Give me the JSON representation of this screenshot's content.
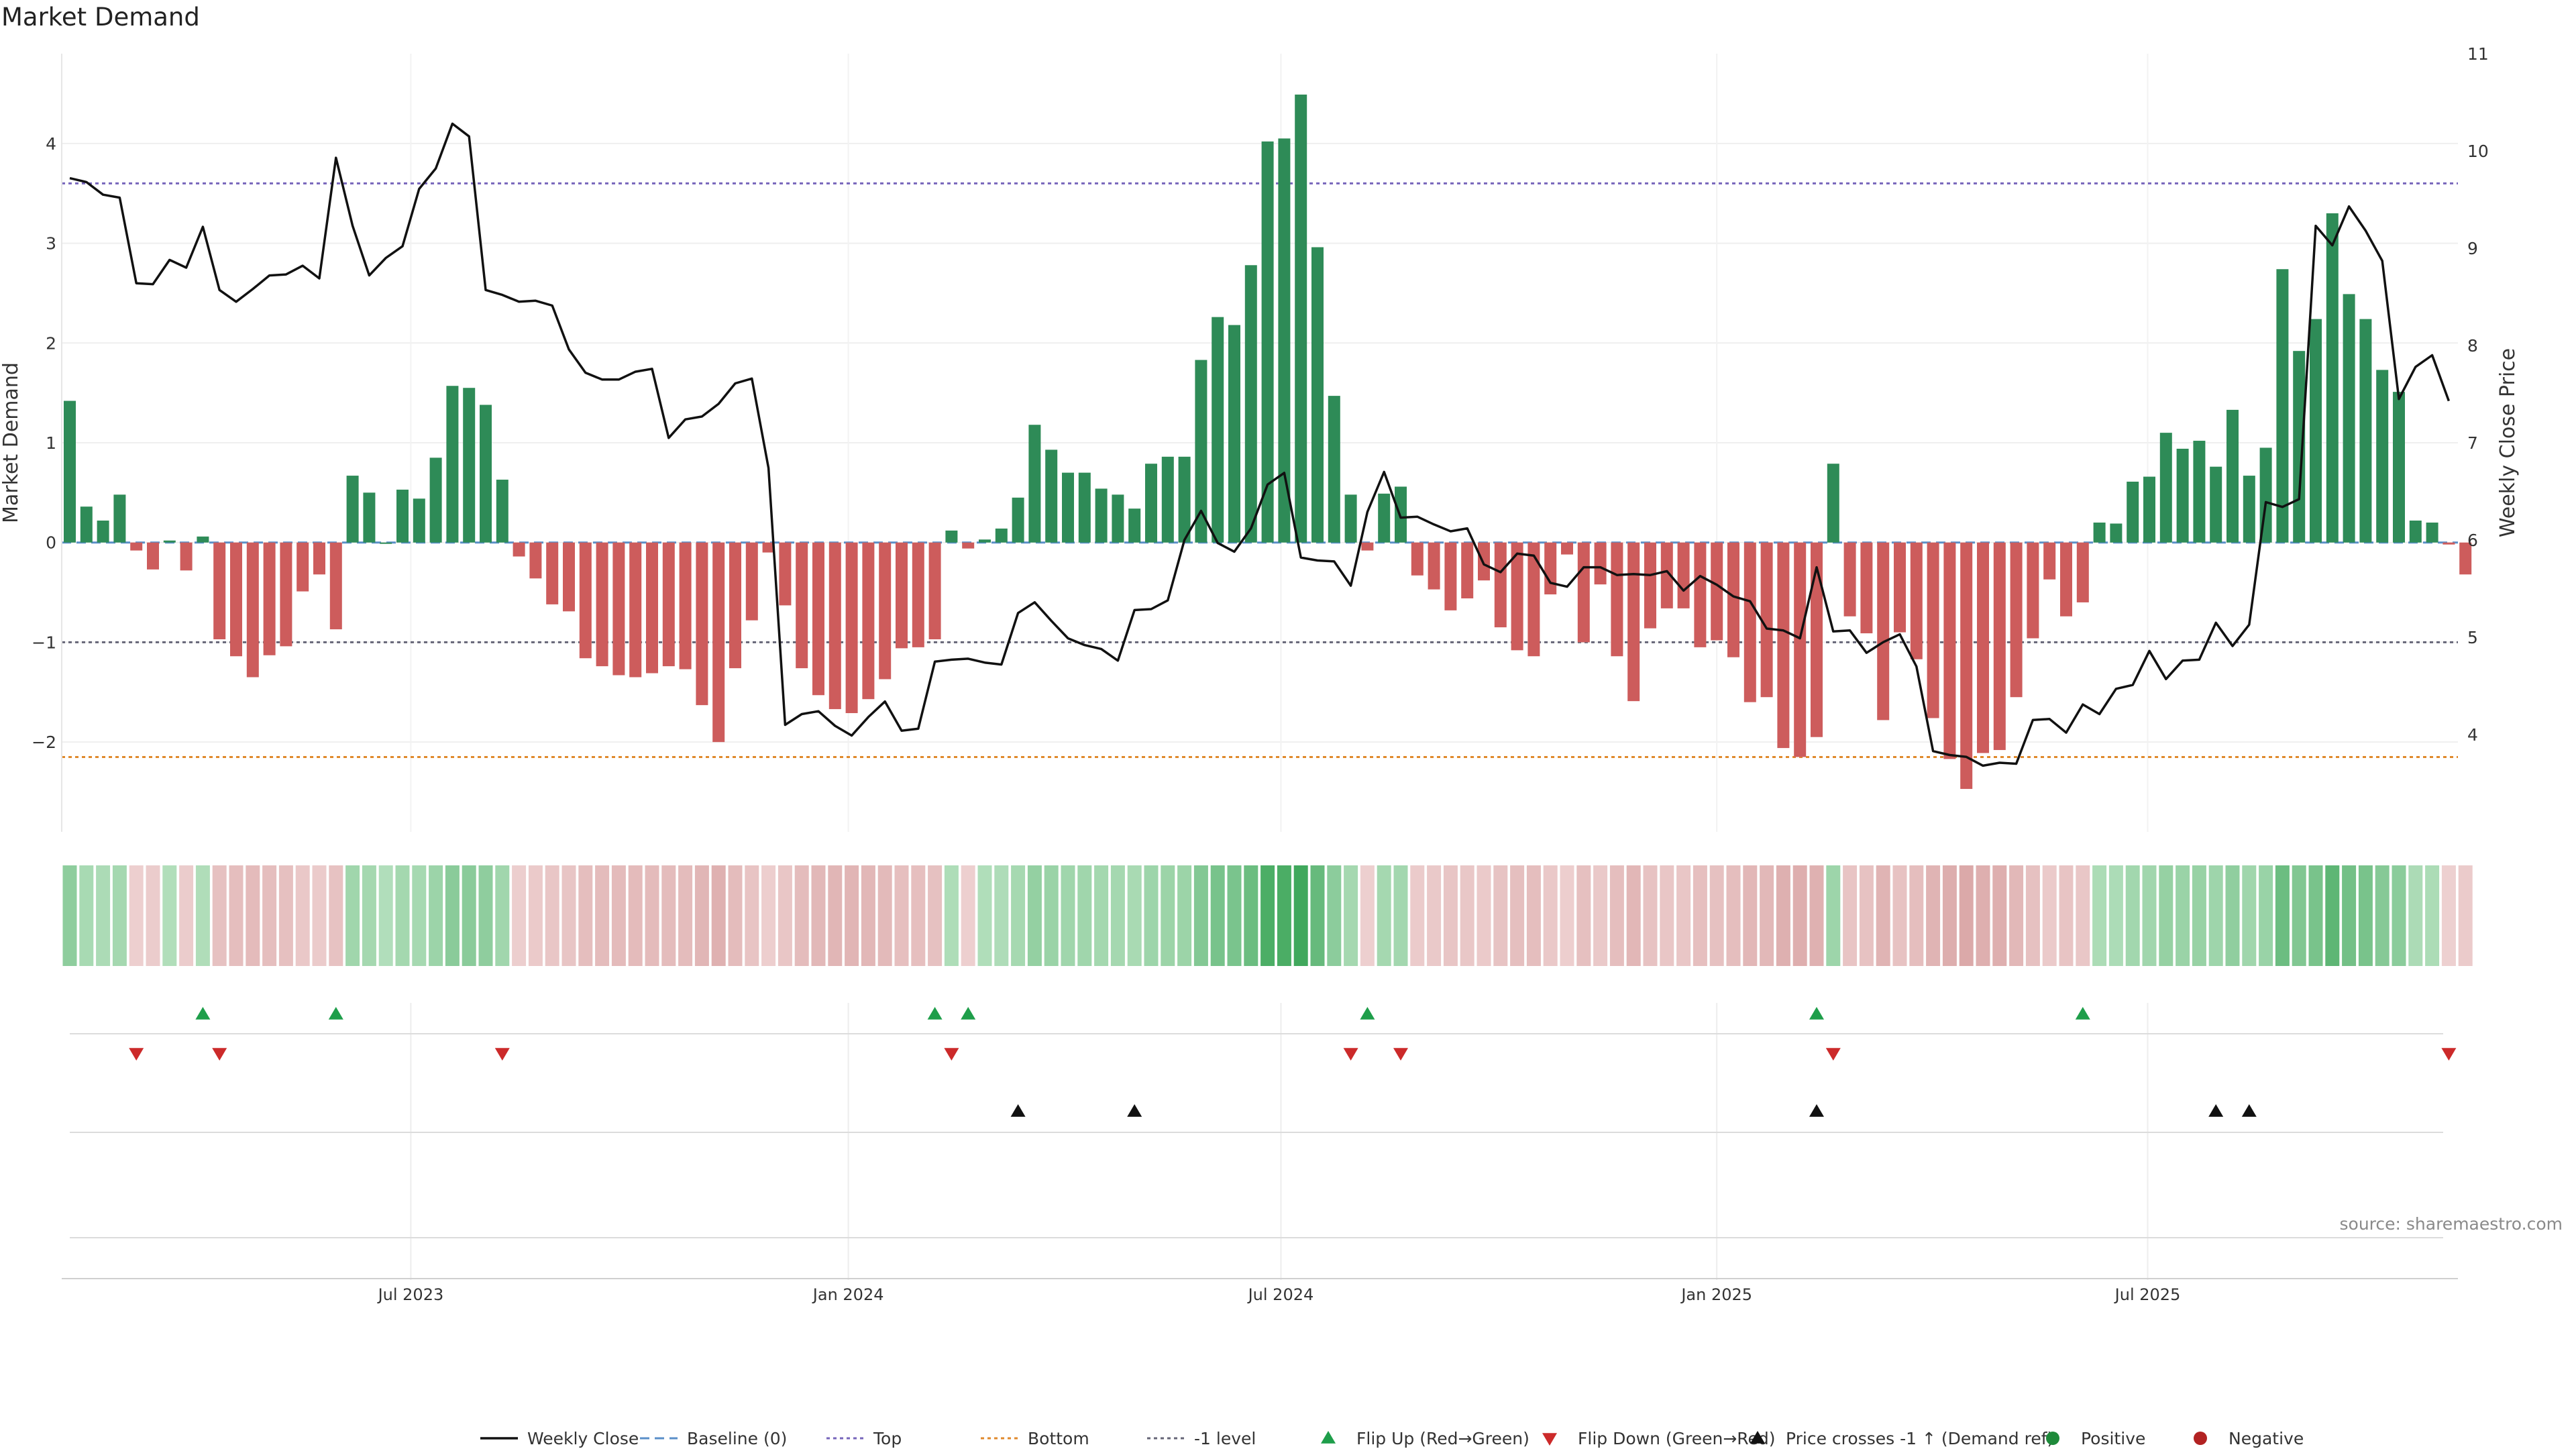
{
  "chart_data": {
    "type": "bar+line",
    "title": "Market Demand",
    "ylabel_left": "Market Demand",
    "ylabel_right": "Weekly Close Price",
    "ylim_left": [
      -2.9,
      4.9
    ],
    "ylim_right": [
      3,
      11
    ],
    "yticks_left": [
      -2,
      -1,
      0,
      1,
      2,
      3,
      4
    ],
    "yticks_right": [
      4,
      5,
      6,
      7,
      8,
      9,
      10,
      11
    ],
    "x_tick_labels": [
      {
        "label": "Jul 2023",
        "index": 20.5
      },
      {
        "label": "Jan 2024",
        "index": 46.8
      },
      {
        "label": "Jul 2024",
        "index": 72.8
      },
      {
        "label": "Jan 2025",
        "index": 99.0
      },
      {
        "label": "Jul 2025",
        "index": 124.9
      }
    ],
    "reference_lines": {
      "top": 3.6,
      "bottom": -2.15,
      "minus_one": -1.0,
      "baseline": 0
    },
    "demand": [
      1.42,
      0.36,
      0.22,
      0.48,
      -0.08,
      -0.27,
      0.02,
      -0.28,
      0.06,
      -0.97,
      -1.14,
      -1.35,
      -1.13,
      -1.04,
      -0.49,
      -0.32,
      -0.87,
      0.67,
      0.5,
      0.0,
      0.53,
      0.44,
      0.85,
      1.57,
      1.55,
      1.38,
      0.63,
      -0.14,
      -0.36,
      -0.62,
      -0.69,
      -1.16,
      -1.24,
      -1.33,
      -1.35,
      -1.31,
      -1.24,
      -1.27,
      -1.63,
      -2.0,
      -1.26,
      -0.78,
      -0.1,
      -0.63,
      -1.26,
      -1.53,
      -1.67,
      -1.71,
      -1.57,
      -1.37,
      -1.06,
      -1.05,
      -0.97,
      0.12,
      -0.06,
      0.03,
      0.14,
      0.45,
      1.18,
      0.93,
      0.7,
      0.7,
      0.54,
      0.48,
      0.34,
      0.79,
      0.86,
      0.86,
      1.83,
      2.26,
      2.18,
      2.78,
      4.02,
      4.05,
      4.49,
      2.96,
      1.47,
      0.48,
      -0.08,
      0.49,
      0.56,
      -0.33,
      -0.47,
      -0.68,
      -0.56,
      -0.38,
      -0.85,
      -1.08,
      -1.14,
      -0.52,
      -0.12,
      -1.0,
      -0.42,
      -1.14,
      -1.59,
      -0.86,
      -0.66,
      -0.66,
      -1.05,
      -0.98,
      -1.15,
      -1.6,
      -1.55,
      -2.06,
      -2.15,
      -1.95,
      0.79,
      -0.74,
      -0.91,
      -1.78,
      -0.9,
      -1.17,
      -1.76,
      -2.17,
      -2.47,
      -2.11,
      -2.08,
      -1.55,
      -0.96,
      -0.37,
      -0.74,
      -0.6,
      0.2,
      0.19,
      0.61,
      0.66,
      1.1,
      0.94,
      1.02,
      0.76,
      1.33,
      0.67,
      0.95,
      2.74,
      1.92,
      2.24,
      3.3,
      2.49,
      2.24,
      1.73,
      1.51,
      0.22,
      0.2,
      -0.02,
      -0.32
    ],
    "weekly_close": [
      9.72,
      9.68,
      9.55,
      9.52,
      8.64,
      8.63,
      8.88,
      8.8,
      9.22,
      8.57,
      8.45,
      8.58,
      8.72,
      8.73,
      8.82,
      8.69,
      9.93,
      9.23,
      8.72,
      8.9,
      9.02,
      9.61,
      9.82,
      10.28,
      10.15,
      8.57,
      8.52,
      8.45,
      8.46,
      8.41,
      7.96,
      7.72,
      7.65,
      7.65,
      7.73,
      7.76,
      7.05,
      7.24,
      7.27,
      7.4,
      7.61,
      7.66,
      6.74,
      4.1,
      4.21,
      4.24,
      4.09,
      3.99,
      4.18,
      4.34,
      4.04,
      4.06,
      4.75,
      4.77,
      4.78,
      4.74,
      4.72,
      5.25,
      5.36,
      5.17,
      4.99,
      4.92,
      4.88,
      4.76,
      5.28,
      5.29,
      5.38,
      6.0,
      6.3,
      5.97,
      5.88,
      6.12,
      6.57,
      6.69,
      5.82,
      5.79,
      5.78,
      5.53,
      6.29,
      6.7,
      6.23,
      6.24,
      6.16,
      6.09,
      6.12,
      5.75,
      5.67,
      5.86,
      5.84,
      5.56,
      5.52,
      5.72,
      5.72,
      5.64,
      5.65,
      5.64,
      5.68,
      5.48,
      5.63,
      5.54,
      5.42,
      5.37,
      5.09,
      5.07,
      4.99,
      5.72,
      5.06,
      5.07,
      4.84,
      4.95,
      5.03,
      4.7,
      3.83,
      3.79,
      3.77,
      3.68,
      3.71,
      3.7,
      4.15,
      4.16,
      4.02,
      4.31,
      4.21,
      4.47,
      4.51,
      4.86,
      4.57,
      4.76,
      4.77,
      5.15,
      4.91,
      5.13,
      6.39,
      6.34,
      6.42,
      9.23,
      9.03,
      9.43,
      9.18,
      8.87,
      7.45,
      7.78,
      7.9,
      7.43
    ],
    "heat_strip": "per-week demand intensity (green positive / red negative)",
    "flip_up_indices": [
      8,
      16,
      52,
      54,
      78,
      105,
      121
    ],
    "flip_down_indices": [
      4,
      9,
      26,
      53,
      77,
      80,
      106,
      143
    ],
    "price_cross_up_indices": [
      57,
      64,
      105,
      129,
      131
    ],
    "source_note": "source: sharemaestro.com",
    "legend": [
      {
        "label": "Weekly Close",
        "kind": "line",
        "color": "#111111"
      },
      {
        "label": "Baseline (0)",
        "kind": "dash",
        "color": "#5a8fc8"
      },
      {
        "label": "Top",
        "kind": "dot",
        "color": "#7766bb"
      },
      {
        "label": "Bottom",
        "kind": "dot",
        "color": "#e08a2c"
      },
      {
        "label": "-1 level",
        "kind": "dot",
        "color": "#666677"
      },
      {
        "label": "Flip Up (Red→Green)",
        "kind": "tri-up",
        "color": "#1e9e4a"
      },
      {
        "label": "Flip Down (Green→Red)",
        "kind": "tri-down",
        "color": "#cc2a2a"
      },
      {
        "label": "Price crosses -1 ↑ (Demand ref)",
        "kind": "tri-up",
        "color": "#111111"
      },
      {
        "label": "Positive",
        "kind": "dot-circle",
        "color": "#1e8a3a"
      },
      {
        "label": "Negative",
        "kind": "dot-circle",
        "color": "#b22222"
      }
    ],
    "colors": {
      "positive_bar": "#2e8b57",
      "negative_bar": "#cd5c5c",
      "price_line": "#111111"
    }
  }
}
